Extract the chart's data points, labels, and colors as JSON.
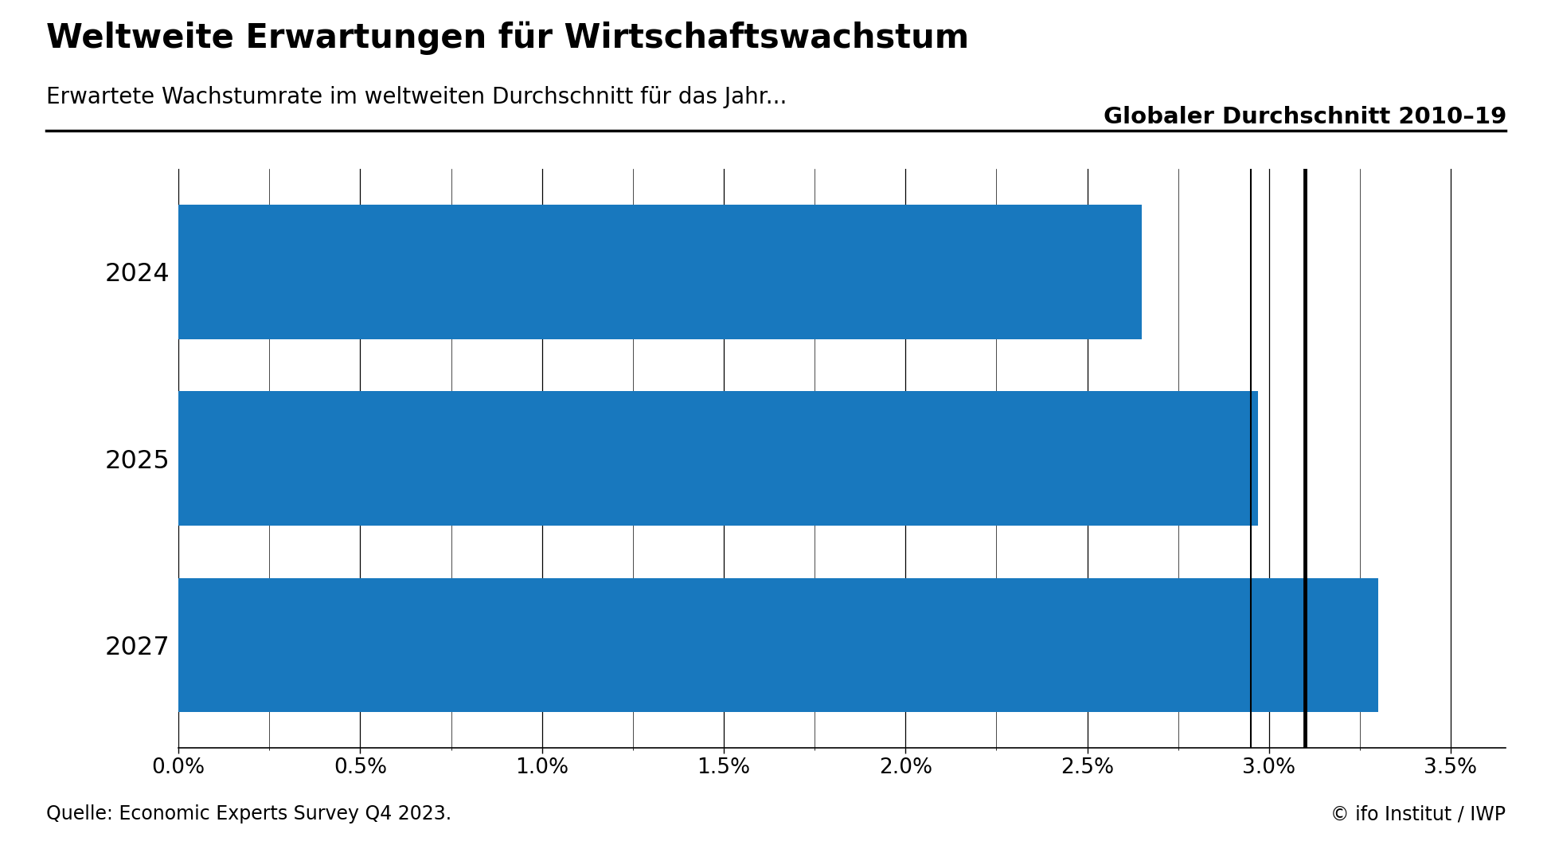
{
  "title": "Weltweite Erwartungen für Wirtschaftswachstum",
  "subtitle": "Erwartete Wachstumrate im weltweiten Durchschnitt für das Jahr...",
  "categories": [
    "2024",
    "2025",
    "2027"
  ],
  "values": [
    0.0265,
    0.0297,
    0.033
  ],
  "bar_color": "#1878be",
  "reference_line_thick": 0.031,
  "reference_line_thin": 0.0295,
  "reference_label": "Globaler Durchschnitt 2010–19",
  "xlim": [
    0.0,
    0.0365
  ],
  "xticks": [
    0.0,
    0.005,
    0.01,
    0.015,
    0.02,
    0.025,
    0.03,
    0.035
  ],
  "xtick_labels": [
    "0.0%",
    "0.5%",
    "1.0%",
    "1.5%",
    "2.0%",
    "2.5%",
    "3.0%",
    "3.5%"
  ],
  "minor_xticks": [
    0.0025,
    0.0075,
    0.0125,
    0.0175,
    0.0225,
    0.0275,
    0.0325
  ],
  "source_left": "Quelle: Economic Experts Survey Q4 2023.",
  "source_right": "© ifo Institut / IWP",
  "title_fontsize": 30,
  "subtitle_fontsize": 20,
  "tick_fontsize": 19,
  "label_fontsize": 23,
  "source_fontsize": 17,
  "ref_label_fontsize": 21,
  "background_color": "#ffffff"
}
